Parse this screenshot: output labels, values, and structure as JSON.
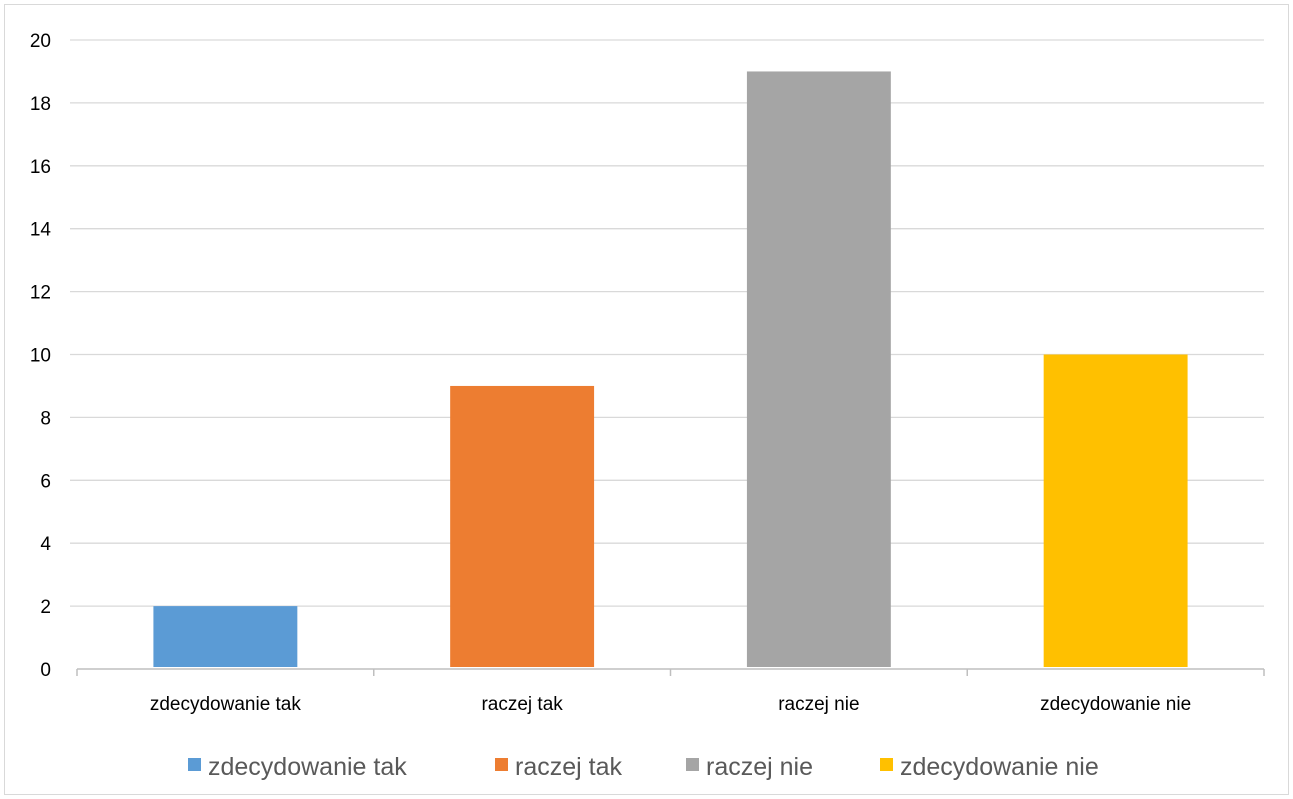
{
  "chart_data": {
    "type": "bar",
    "categories": [
      "zdecydowanie tak",
      "raczej tak",
      "raczej nie",
      "zdecydowanie nie"
    ],
    "values": [
      2,
      9,
      19,
      10
    ],
    "colors": [
      "#5b9bd5",
      "#ed7d31",
      "#a5a5a5",
      "#ffc000"
    ],
    "ylim": [
      0,
      20
    ],
    "yticks": [
      "0",
      "2",
      "4",
      "6",
      "8",
      "10",
      "12",
      "14",
      "16",
      "18",
      "20"
    ],
    "grid": true,
    "legend": {
      "position": "bottom",
      "entries": [
        "zdecydowanie tak",
        "raczej tak",
        "raczej nie",
        "zdecydowanie nie"
      ]
    }
  }
}
